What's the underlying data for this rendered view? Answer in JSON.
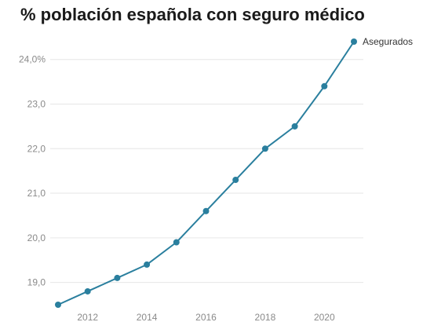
{
  "chart_data": {
    "type": "line",
    "title": "% población española con seguro médico",
    "xlabel": "",
    "ylabel": "",
    "x": [
      2011,
      2012,
      2013,
      2014,
      2015,
      2016,
      2017,
      2018,
      2019,
      2020,
      2021
    ],
    "xlim": [
      2011,
      2021
    ],
    "ylim": [
      18.5,
      24.4
    ],
    "x_ticks": [
      2012,
      2014,
      2016,
      2018,
      2020
    ],
    "x_tick_labels": [
      "2012",
      "2014",
      "2016",
      "2018",
      "2020"
    ],
    "y_ticks": [
      19,
      20,
      21,
      22,
      23,
      24
    ],
    "y_tick_labels": [
      "19,0",
      "20,0",
      "21,0",
      "22,0",
      "23,0",
      "24,0%"
    ],
    "grid": "horizontal",
    "series": [
      {
        "name": "Asegurados",
        "color": "#2a7f9e",
        "values": [
          18.5,
          18.8,
          19.1,
          19.4,
          19.9,
          20.6,
          21.3,
          22.0,
          22.5,
          23.4,
          24.4
        ]
      }
    ]
  }
}
